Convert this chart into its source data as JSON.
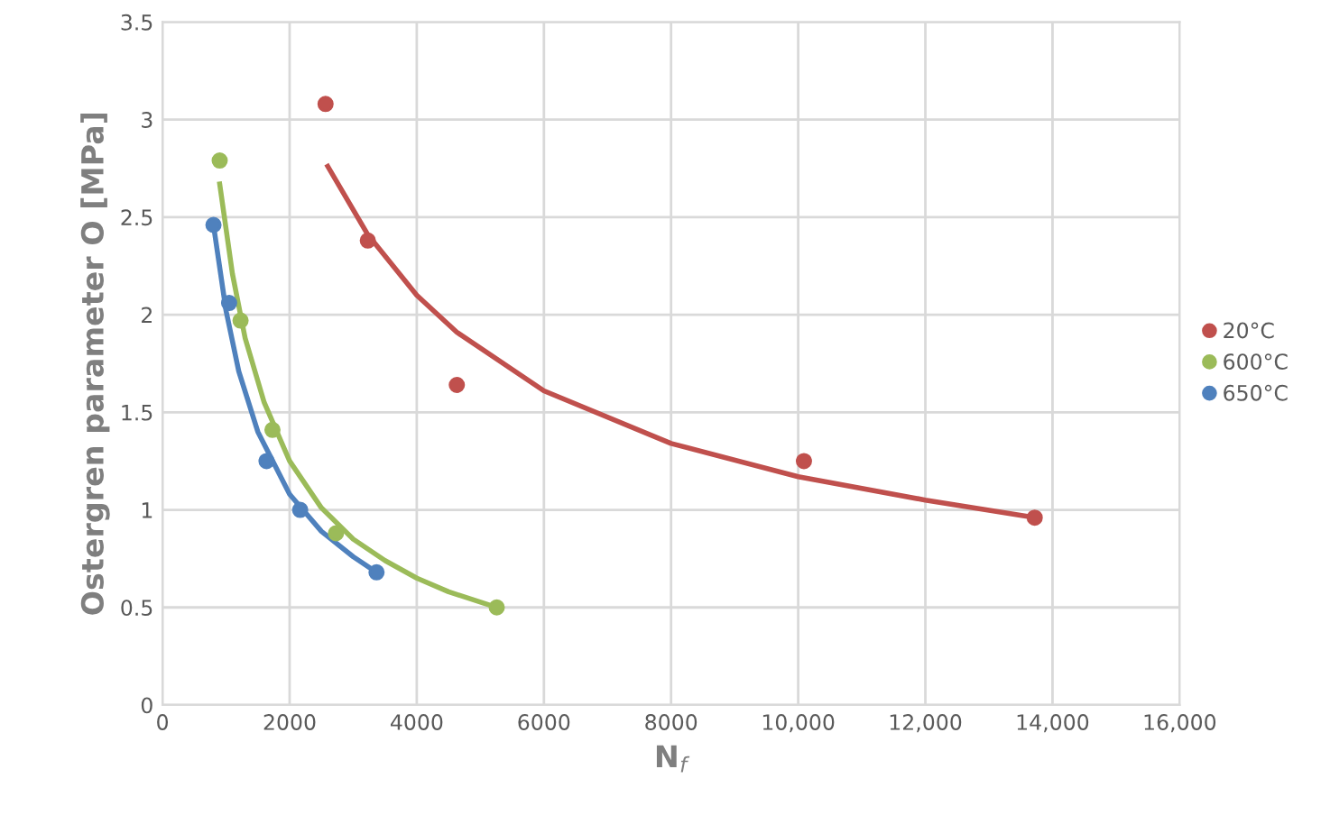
{
  "chart_data": {
    "type": "scatter",
    "xlabel": "N$_{f}$",
    "ylabel": "Ostergren parameter O [MPa]",
    "xlim": [
      0,
      16000
    ],
    "ylim": [
      0,
      3.5
    ],
    "xticks": [
      0,
      2000,
      4000,
      6000,
      8000,
      {
        "value": 10000,
        "label": "10,000"
      },
      {
        "value": 12000,
        "label": "12,000"
      },
      {
        "value": 14000,
        "label": "14,000"
      },
      {
        "value": 16000,
        "label": "16,000"
      }
    ],
    "yticks": [
      0,
      0.5,
      1,
      1.5,
      2,
      2.5,
      3,
      3.5
    ],
    "grid": true,
    "legend": "right",
    "series": [
      {
        "name": "20°C",
        "marker": "circle",
        "color": "#c0504d",
        "x": [
          2565,
          3230,
          4630,
          10090,
          13720
        ],
        "values": [
          3.08,
          2.38,
          1.64,
          1.25,
          0.96
        ]
      },
      {
        "name": "600°C",
        "marker": "circle",
        "color": "#9bbb59",
        "x": [
          900,
          1228,
          1730,
          2729,
          5258
        ],
        "values": [
          2.79,
          1.97,
          1.41,
          0.88,
          0.5
        ]
      },
      {
        "name": "650°C",
        "marker": "circle",
        "color": "#4f81bd",
        "x": [
          802,
          1048,
          1637,
          2166,
          3367
        ],
        "values": [
          2.46,
          2.06,
          1.25,
          1.0,
          0.68
        ]
      },
      {
        "type": "line",
        "marker": "none",
        "color": "#c0504d",
        "x": [
          2600,
          3230,
          4000,
          4630,
          6000,
          8000,
          10000,
          12000,
          13720
        ],
        "values": [
          2.76,
          2.41,
          2.1,
          1.91,
          1.61,
          1.34,
          1.17,
          1.05,
          0.96
        ]
      },
      {
        "type": "line",
        "marker": "none",
        "color": "#9bbb59",
        "x": [
          900,
          1100,
          1300,
          1600,
          2000,
          2500,
          3000,
          3500,
          4000,
          4500,
          5258
        ],
        "values": [
          2.67,
          2.21,
          1.88,
          1.55,
          1.25,
          1.01,
          0.85,
          0.74,
          0.65,
          0.58,
          0.5
        ]
      },
      {
        "type": "line",
        "marker": "none",
        "color": "#4f81bd",
        "x": [
          802,
          1000,
          1200,
          1500,
          2000,
          2500,
          3000,
          3367
        ],
        "values": [
          2.46,
          2.02,
          1.71,
          1.4,
          1.08,
          0.89,
          0.76,
          0.68
        ]
      }
    ]
  }
}
